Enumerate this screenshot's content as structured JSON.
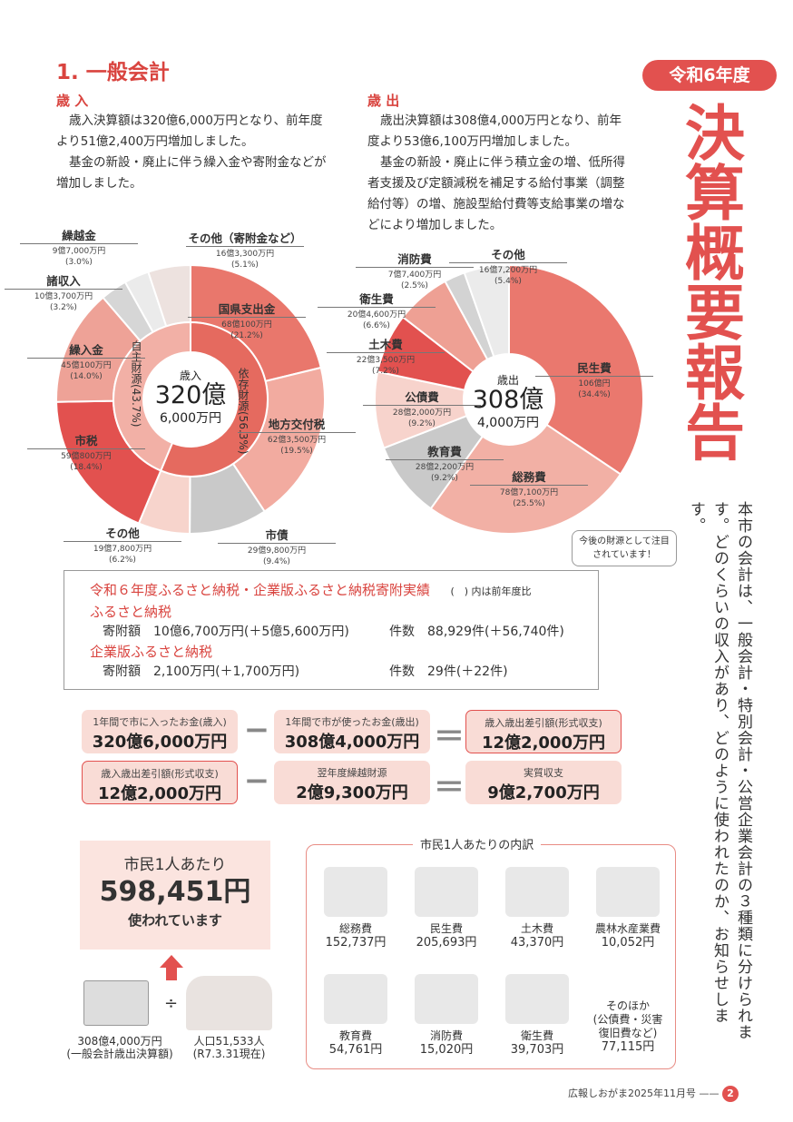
{
  "badge": "令和6年度",
  "vertical_title": "決算概要報告",
  "vertical_body": "本市の会計は、一般会計・特別会計・公営企業会計の３種類に分けられます。どのくらいの収入があり、どのように使われたのか、お知らせします。",
  "section_title": "1. 一般会計",
  "revenue": {
    "heading": "歳 入",
    "p1": "歳入決算額は320億6,000万円となり、前年度より51億2,400万円増加しました。",
    "p2": "基金の新設・廃止に伴う繰入金や寄附金などが増加しました。"
  },
  "expenditure": {
    "heading": "歳 出",
    "p1": "歳出決算額は308億4,000万円となり、前年度より53億6,100万円増加しました。",
    "p2": "基金の新設・廃止に伴う積立金の増、低所得者支援及び定額減税を補足する給付事業（調整給付等）の増、施設型給付費等支給事業の増などにより増加しました。"
  },
  "chart_data": [
    {
      "type": "pie",
      "title": "歳入",
      "center_label": "歳入",
      "center_big": "320億",
      "center_small": "6,000万円",
      "slices": [
        {
          "name": "国県支出金",
          "amount": "68億100万円",
          "pct": 21.2,
          "pct_label": "(21.2%)",
          "color": "#e9776c"
        },
        {
          "name": "地方交付税",
          "amount": "62億3,500万円",
          "pct": 19.5,
          "pct_label": "(19.5%)",
          "color": "#f2aba0"
        },
        {
          "name": "市債",
          "amount": "29億9,800万円",
          "pct": 9.4,
          "pct_label": "(9.4%)",
          "color": "#c9c9c9"
        },
        {
          "name": "その他",
          "amount": "19億7,800万円",
          "pct": 6.2,
          "pct_label": "(6.2%)",
          "color": "#f7d4cc"
        },
        {
          "name": "市税",
          "amount": "59億800万円",
          "pct": 18.4,
          "pct_label": "(18.4%)",
          "color": "#e2514f"
        },
        {
          "name": "繰入金",
          "amount": "45億100万円",
          "pct": 14.0,
          "pct_label": "(14.0%)",
          "color": "#eea297"
        },
        {
          "name": "諸収入",
          "amount": "10億3,700万円",
          "pct": 3.2,
          "pct_label": "(3.2%)",
          "color": "#d6d6d6"
        },
        {
          "name": "繰越金",
          "amount": "9億7,000万円",
          "pct": 3.0,
          "pct_label": "(3.0%)",
          "color": "#ebebeb"
        },
        {
          "name": "その他（寄附金など）",
          "amount": "16億3,300万円",
          "pct": 5.1,
          "pct_label": "(5.1%)",
          "color": "#ede2df"
        }
      ],
      "inner": [
        {
          "name": "依存財源(56.3%)",
          "pct": 56.3,
          "color": "#e56a5f"
        },
        {
          "name": "自主財源(43.7%)",
          "pct": 43.7,
          "color": "#f2b0a6"
        }
      ]
    },
    {
      "type": "pie",
      "title": "歳出",
      "center_label": "歳出",
      "center_big": "308億",
      "center_small": "4,000万円",
      "slices": [
        {
          "name": "民生費",
          "amount": "106億円",
          "pct": 34.4,
          "pct_label": "(34.4%)",
          "color": "#ea786e"
        },
        {
          "name": "総務費",
          "amount": "78億7,100万円",
          "pct": 25.5,
          "pct_label": "(25.5%)",
          "color": "#f2b0a5"
        },
        {
          "name": "教育費",
          "amount": "28億2,200万円",
          "pct": 9.2,
          "pct_label": "(9.2%)",
          "color": "#c9c9c9"
        },
        {
          "name": "公債費",
          "amount": "28億2,000万円",
          "pct": 9.2,
          "pct_label": "(9.2%)",
          "color": "#f7d3cc"
        },
        {
          "name": "土木費",
          "amount": "22億3,500万円",
          "pct": 7.2,
          "pct_label": "(7.2%)",
          "color": "#e2514f"
        },
        {
          "name": "衛生費",
          "amount": "20億4,600万円",
          "pct": 6.6,
          "pct_label": "(6.6%)",
          "color": "#eea094"
        },
        {
          "name": "消防費",
          "amount": "7億7,400万円",
          "pct": 2.5,
          "pct_label": "(2.5%)",
          "color": "#d3d3d3"
        },
        {
          "name": "その他",
          "amount": "16億7,200万円",
          "pct": 5.4,
          "pct_label": "(5.4%)",
          "color": "#ebebeb"
        }
      ]
    }
  ],
  "callout": "今後の財源として注目されています！",
  "furusato": {
    "title": "令和６年度ふるさと納税・企業版ふるさと納税寄附実績",
    "note": "(　) 内は前年度比",
    "s1": "ふるさと納税",
    "s1_amount_label": "寄附額",
    "s1_amount": "10億6,700万円(＋5億5,600万円)",
    "s1_count_label": "件数",
    "s1_count": "88,929件(＋56,740件)",
    "s2": "企業版ふるさと納税",
    "s2_amount_label": "寄附額",
    "s2_amount": "2,100万円(＋1,700万円)",
    "s2_count_label": "件数",
    "s2_count": "29件(＋22件)"
  },
  "equations": [
    {
      "a_t": "1年間で市に入ったお金(歳入)",
      "a_v": "320億6,000万円",
      "b_t": "1年間で市が使ったお金(歳出)",
      "b_v": "308億4,000万円",
      "c_t": "歳入歳出差引額(形式収支)",
      "c_v": "12億2,000万円"
    },
    {
      "a_t": "歳入歳出差引額(形式収支)",
      "a_v": "12億2,000万円",
      "b_t": "翌年度繰越財源",
      "b_v": "2億9,300万円",
      "c_t": "実質収支",
      "c_v": "9億2,700万円"
    }
  ],
  "ops": {
    "minus": "−",
    "equals": "＝",
    "divide": "÷"
  },
  "per": {
    "l1": "市民1人あたり",
    "amount": "598,451円",
    "l3": "使われています",
    "total": "308億4,000万円",
    "total_note": "(一般会計歳出決算額)",
    "pop": "人口51,533人",
    "pop_note": "(R7.3.31現在)"
  },
  "breakdown": {
    "title": "市民1人あたりの内訳",
    "items": [
      {
        "name": "総務費",
        "value": "152,737円"
      },
      {
        "name": "民生費",
        "value": "205,693円"
      },
      {
        "name": "土木費",
        "value": "43,370円"
      },
      {
        "name": "農林水産業費",
        "value": "10,052円"
      },
      {
        "name": "教育費",
        "value": "54,761円"
      },
      {
        "name": "消防費",
        "value": "15,020円"
      },
      {
        "name": "衛生費",
        "value": "39,703円"
      },
      {
        "name": "そのほか\n(公債費・災害\n復旧費など)",
        "value": "77,115円"
      }
    ]
  },
  "footer": {
    "text": "広報しおがま2025年11月号 ——",
    "page": "2"
  }
}
